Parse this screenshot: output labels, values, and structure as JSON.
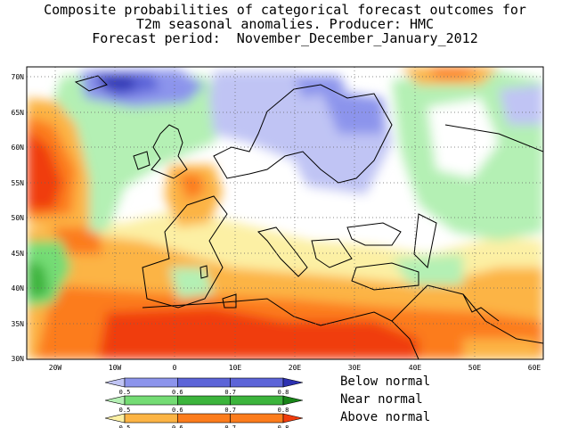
{
  "title": {
    "line1": "Composite probabilities of categorical forecast outcomes for",
    "line2": "T2m seasonal anomalies. Producer: HMC",
    "line3": "Forecast period:  November_December_January_2012"
  },
  "axes": {
    "lat_ticks": [
      "70N",
      "65N",
      "60N",
      "55N",
      "50N",
      "45N",
      "40N",
      "35N",
      "30N"
    ],
    "lon_ticks": [
      "20W",
      "10W",
      "0",
      "10E",
      "20E",
      "30E",
      "40E",
      "50E",
      "60E"
    ]
  },
  "legend": {
    "below": {
      "label": "Below normal",
      "ticks": [
        "0.5",
        "0.6",
        "0.7",
        "0.8"
      ],
      "colors": [
        "#c0c4f4",
        "#8c94ec",
        "#5c64d8",
        "#2c30b0"
      ]
    },
    "near": {
      "label": "Near normal",
      "ticks": [
        "0.5",
        "0.6",
        "0.7",
        "0.8"
      ],
      "colors": [
        "#b4f0b4",
        "#74dc74",
        "#3cb43c",
        "#188418"
      ]
    },
    "above": {
      "label": "Above normal",
      "ticks": [
        "0.5",
        "0.6",
        "0.7",
        "0.8"
      ],
      "colors": [
        "#fcf0a4",
        "#fcb444",
        "#fc7c1c",
        "#f03c0c"
      ]
    }
  }
}
